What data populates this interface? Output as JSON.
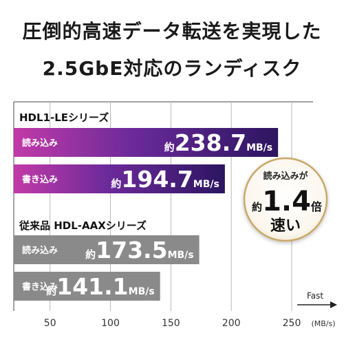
{
  "headline": {
    "line1": "圧倒的高速データ転送を実現した",
    "line2": "2.5GbE対応のランディスク"
  },
  "badge": {
    "top": "読み込みが",
    "approx": "約",
    "value": "1.4",
    "unit": "倍",
    "bottom": "速い"
  },
  "fast_label": "Fast",
  "colors": {
    "new_bar_start": "#c23aa8",
    "new_bar_mid": "#6b2a9a",
    "new_bar_end": "#2c1560",
    "old_bar": "#8a8a8a",
    "badge_ring": "#c9a86a"
  },
  "chart_data": {
    "type": "bar",
    "orientation": "horizontal",
    "xlim": [
      20,
      250
    ],
    "ticks": [
      "50",
      "100",
      "150",
      "200",
      "250"
    ],
    "tick_values": [
      50,
      100,
      150,
      200,
      250
    ],
    "unit_label": "(MB/s)",
    "grid": true,
    "groups": [
      {
        "name": "HDL1-LEシリーズ",
        "bars": [
          {
            "label": "読み込み",
            "prefix": "約",
            "value": 238.7,
            "value_text": "238.7",
            "unit": "MB/s"
          },
          {
            "label": "書き込み",
            "prefix": "約",
            "value": 194.7,
            "value_text": "194.7",
            "unit": "MB/s"
          }
        ]
      },
      {
        "name": "従来品 HDL-AAXシリーズ",
        "bars": [
          {
            "label": "読み込み",
            "prefix": "約",
            "value": 173.5,
            "value_text": "173.5",
            "unit": "MB/s"
          },
          {
            "label": "書き込み",
            "prefix": "約",
            "value": 141.1,
            "value_text": "141.1",
            "unit": "MB/s"
          }
        ]
      }
    ]
  }
}
